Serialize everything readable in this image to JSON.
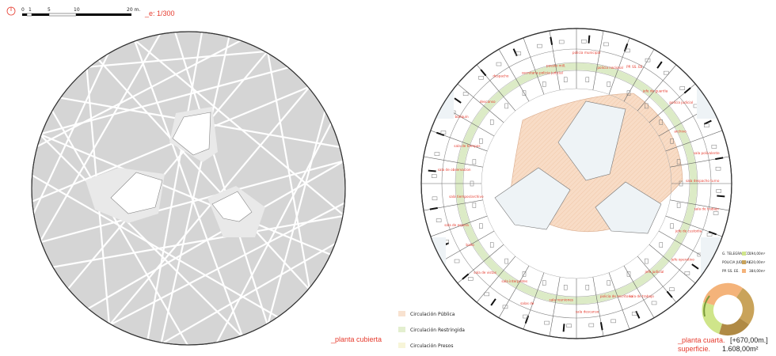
{
  "scale_bar": {
    "ticks": [
      "0",
      "1",
      "5",
      "10",
      "20 m."
    ],
    "scale_text": "_e: 1/300"
  },
  "left_plan": {
    "caption": "_planta cubierta"
  },
  "legend": {
    "items": [
      {
        "label": "Circulación Pública",
        "color": "#f8e2d0"
      },
      {
        "label": "Circulación Restringida",
        "color": "#e3efcf"
      },
      {
        "label": "Circulación Presos",
        "color": "#f7f5d8"
      }
    ]
  },
  "right_plan": {
    "caption": "_planta cuarta.",
    "level": "[+670,00m.]",
    "area_label": "superficie.",
    "area_value": "1.608,00m²",
    "room_labels": [
      "puesto mill.",
      "policia municipal",
      "policia nacional",
      "PP. SS. EE.",
      "jefe de guardia",
      "policia judicial",
      "archivo",
      "sala polivalente",
      "sala despacho turno",
      "sala de trabajo",
      "jefe de custodia",
      "jefe operativo",
      "jefe judicial",
      "sala de trabajo",
      "policia de escritorio",
      "sala descanso",
      "sala reuniones",
      "salas de",
      "sala interpretes",
      "sala de vistas",
      "baño",
      "sala de espera",
      "sala tiempos/archivo",
      "sala de observacion",
      "sala de tiempos",
      "botiquin",
      "descanso",
      "despacho",
      "secretaria policia judicial"
    ],
    "area_table": [
      {
        "name": "G. TELEGRAFICO",
        "value": "194,00m²",
        "color": "#cfe58a"
      },
      {
        "name": "POLICIA JUDICIAL",
        "value": "620,00m²",
        "color": "#c9a35a"
      },
      {
        "name": "PP. SS. EE.",
        "value": "384,00m²",
        "color": "#f4b37a"
      }
    ]
  },
  "colors": {
    "accent_red": "#e63b2e",
    "roof_gray": "#d5d5d5",
    "public_circ": "#f8dcc6",
    "restricted_circ": "#dcebc6"
  },
  "icons": [
    "north-arrow-icon"
  ]
}
